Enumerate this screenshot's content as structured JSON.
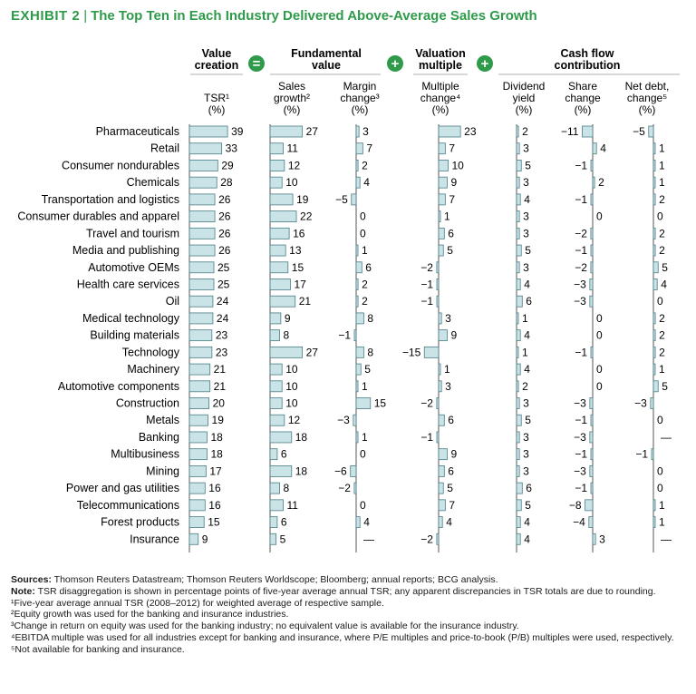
{
  "title": {
    "exhibit": "EXHIBIT 2",
    "separator": "|",
    "text": "The Top Ten in Each Industry Delivered Above-Average Sales Growth"
  },
  "colors": {
    "accent": "#2e9a4a",
    "bar_fill": "#c9e3e6",
    "bar_stroke": "#4a7e86",
    "operator_circle": "#2e9a4a"
  },
  "chart_data": {
    "type": "bar",
    "orientation": "horizontal",
    "group_headers": [
      {
        "id": "value_creation",
        "lines": [
          "Value",
          "creation"
        ]
      },
      {
        "id": "fundamental",
        "lines": [
          "Fundamental",
          "value"
        ]
      },
      {
        "id": "valuation",
        "lines": [
          "Valuation",
          "multiple"
        ]
      },
      {
        "id": "cashflow",
        "lines": [
          "Cash flow",
          "contribution"
        ]
      }
    ],
    "operators": [
      "=",
      "+",
      "+"
    ],
    "columns": [
      {
        "key": "tsr",
        "label": [
          "TSR¹",
          "(%)"
        ]
      },
      {
        "key": "sales_growth",
        "label": [
          "Sales",
          "growth²",
          "(%)"
        ]
      },
      {
        "key": "margin_change",
        "label": [
          "Margin",
          "change³",
          "(%)"
        ]
      },
      {
        "key": "multiple_change",
        "label": [
          "Multiple",
          "change⁴",
          "(%)"
        ]
      },
      {
        "key": "dividend_yield",
        "label": [
          "Dividend",
          "yield",
          "(%)"
        ]
      },
      {
        "key": "share_change",
        "label": [
          "Share",
          "change",
          "(%)"
        ]
      },
      {
        "key": "net_debt_change",
        "label": [
          "Net debt,",
          "change⁵",
          "(%)"
        ]
      }
    ],
    "categories": [
      "Pharmaceuticals",
      "Retail",
      "Consumer nondurables",
      "Chemicals",
      "Transportation and logistics",
      "Consumer durables and apparel",
      "Travel and tourism",
      "Media and publishing",
      "Automotive OEMs",
      "Health care services",
      "Oil",
      "Medical technology",
      "Building materials",
      "Technology",
      "Machinery",
      "Automotive components",
      "Construction",
      "Metals",
      "Banking",
      "Multibusiness",
      "Mining",
      "Power and gas utilities",
      "Telecommunications",
      "Forest products",
      "Insurance"
    ],
    "series": [
      {
        "name": "TSR",
        "values": [
          39,
          33,
          29,
          28,
          26,
          26,
          26,
          26,
          25,
          25,
          24,
          24,
          23,
          23,
          21,
          21,
          20,
          19,
          18,
          18,
          17,
          16,
          16,
          15,
          9
        ]
      },
      {
        "name": "Sales growth",
        "values": [
          27,
          11,
          12,
          10,
          19,
          22,
          16,
          13,
          15,
          17,
          21,
          9,
          8,
          27,
          10,
          10,
          10,
          12,
          18,
          6,
          18,
          8,
          11,
          6,
          5
        ]
      },
      {
        "name": "Margin change",
        "values": [
          3,
          7,
          2,
          4,
          -5,
          0,
          0,
          1,
          6,
          2,
          2,
          8,
          -1,
          8,
          5,
          1,
          15,
          -3,
          1,
          0,
          -6,
          -2,
          0,
          4,
          null
        ]
      },
      {
        "name": "Multiple change",
        "values": [
          23,
          7,
          10,
          9,
          7,
          1,
          6,
          5,
          -2,
          -1,
          -1,
          3,
          9,
          -15,
          1,
          3,
          -2,
          6,
          -1,
          9,
          6,
          5,
          7,
          4,
          -2
        ]
      },
      {
        "name": "Dividend yield",
        "values": [
          2,
          3,
          5,
          3,
          4,
          3,
          3,
          5,
          3,
          4,
          6,
          1,
          4,
          1,
          4,
          2,
          3,
          5,
          3,
          3,
          3,
          6,
          5,
          4,
          4
        ]
      },
      {
        "name": "Share change",
        "values": [
          -11,
          4,
          -1,
          2,
          -1,
          0,
          -2,
          -1,
          -2,
          -3,
          -3,
          0,
          0,
          -1,
          0,
          0,
          -3,
          -1,
          -3,
          -1,
          -3,
          -1,
          -8,
          -4,
          3
        ]
      },
      {
        "name": "Net debt change",
        "values": [
          -5,
          1,
          1,
          1,
          2,
          0,
          2,
          2,
          5,
          4,
          0,
          2,
          2,
          2,
          1,
          5,
          -3,
          0,
          null,
          -1,
          0,
          0,
          1,
          1,
          null
        ]
      }
    ],
    "missing_symbol": "—"
  },
  "notes": {
    "sources_label": "Sources:",
    "sources_text": "Thomson Reuters Datastream; Thomson Reuters Worldscope; Bloomberg; annual reports; BCG analysis.",
    "note_label": "Note:",
    "note_text": "TSR disaggregation is shown in percentage points of five-year average annual TSR; any apparent discrepancies in TSR totals are due to rounding.",
    "footnotes": [
      "¹Five-year average annual TSR (2008–2012) for weighted average of respective sample.",
      "²Equity growth was used for the banking and insurance industries.",
      "³Change in return on equity was used for the banking industry; no equivalent value is available for the insurance industry.",
      "⁴EBITDA multiple was used for all industries except for banking and insurance, where P/E multiples and price-to-book (P/B) multiples were used, respectively.",
      "⁵Not available for banking and insurance."
    ]
  }
}
